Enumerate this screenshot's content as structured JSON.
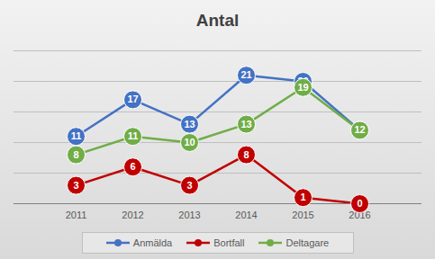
{
  "chart_data": {
    "type": "line",
    "title": "Antal",
    "categories": [
      "2011",
      "2012",
      "2013",
      "2014",
      "2015",
      "2016"
    ],
    "series": [
      {
        "name": "Anmälda",
        "color": "#4472c4",
        "values": [
          11,
          17,
          13,
          21,
          20,
          12
        ]
      },
      {
        "name": "Bortfall",
        "color": "#c00000",
        "values": [
          3,
          6,
          3,
          8,
          1,
          0
        ]
      },
      {
        "name": "Deltagare",
        "color": "#70ad47",
        "values": [
          8,
          11,
          10,
          13,
          19,
          12
        ]
      }
    ],
    "ylim": [
      0,
      25
    ],
    "yticks": [
      0,
      5,
      10,
      15,
      20,
      25
    ],
    "grid": true,
    "legend": "bottom",
    "data_labels": true,
    "marker": "circle",
    "tick_labels": "x"
  }
}
